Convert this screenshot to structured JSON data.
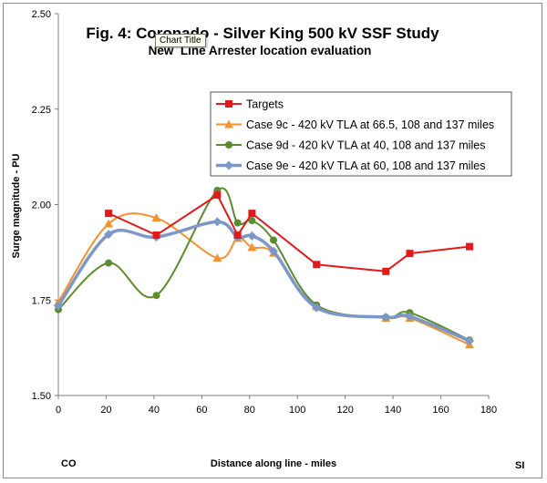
{
  "chart_data": {
    "type": "line",
    "title": "Fig. 4: Coronado - Silver King 500 kV SSF Study",
    "subtitle": "New  Line Arrester location evaluation",
    "xlabel": "Distance along line - miles",
    "ylabel": "Surge magnitude - PU",
    "xlim": [
      0,
      180
    ],
    "ylim": [
      1.5,
      2.5
    ],
    "x_ticks": [
      "0",
      "20",
      "40",
      "60",
      "80",
      "100",
      "120",
      "140",
      "160",
      "180"
    ],
    "y_ticks": [
      "1.50",
      "1.75",
      "2.00",
      "2.25",
      "2.50"
    ],
    "left_label": "CO",
    "right_label": "SI",
    "legend_position": "top-right",
    "series": [
      {
        "name": "Targets",
        "color": "#e31a1c",
        "marker": "square",
        "smooth": false,
        "x": [
          21,
          41,
          66.5,
          75,
          81,
          108,
          137,
          147,
          172
        ],
        "y": [
          1.977,
          1.92,
          2.025,
          1.92,
          1.977,
          1.843,
          1.825,
          1.872,
          1.89
        ]
      },
      {
        "name": "Case 9c - 420 kV TLA at 66.5, 108 and 137 miles",
        "color": "#f5922e",
        "marker": "triangle",
        "smooth": true,
        "x": [
          0,
          21,
          41,
          66.5,
          75,
          81,
          90,
          108,
          137,
          147,
          172
        ],
        "y": [
          1.745,
          1.95,
          1.965,
          1.86,
          1.912,
          1.888,
          1.873,
          1.733,
          1.703,
          1.703,
          1.633
        ]
      },
      {
        "name": "Case 9d - 420 kV TLA at 40, 108 and 137 miles",
        "color": "#5b8c2e",
        "marker": "circle",
        "smooth": true,
        "x": [
          0,
          21,
          41,
          66.5,
          75,
          81,
          90,
          108,
          137,
          147,
          172
        ],
        "y": [
          1.725,
          1.847,
          1.762,
          2.037,
          1.952,
          1.958,
          1.907,
          1.737,
          1.705,
          1.717,
          1.645
        ]
      },
      {
        "name": "Case 9e - 420 kV TLA at 60, 108 and 137 miles",
        "color": "#7e97c9",
        "marker": "diamond",
        "smooth": true,
        "x": [
          0,
          21,
          41,
          66.5,
          75,
          81,
          90,
          108,
          137,
          147,
          172
        ],
        "y": [
          1.735,
          1.922,
          1.915,
          1.955,
          1.915,
          1.918,
          1.878,
          1.73,
          1.705,
          1.707,
          1.643
        ]
      }
    ]
  },
  "tooltip": "Chart Title"
}
